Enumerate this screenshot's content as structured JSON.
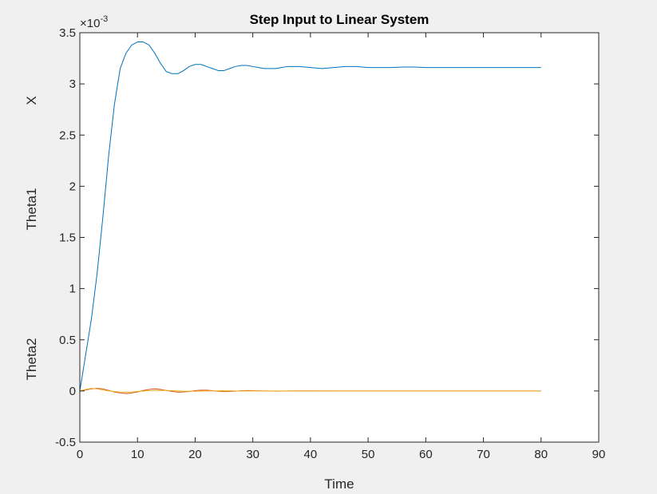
{
  "chart_data": {
    "type": "line",
    "title": "Step Input to Linear System",
    "xlabel": "Time",
    "ylabels": [
      "X",
      "Theta1",
      "Theta2"
    ],
    "y_exponent_label": "×10",
    "y_exponent_value": "-3",
    "xlim": [
      0,
      90
    ],
    "ylim": [
      -0.5,
      3.5
    ],
    "y_scale": 0.001,
    "grid": false,
    "legend": "none",
    "xticks": [
      0,
      10,
      20,
      30,
      40,
      50,
      60,
      70,
      80,
      90
    ],
    "yticks": [
      -0.5,
      0,
      0.5,
      1,
      1.5,
      2,
      2.5,
      3,
      3.5
    ],
    "ytick_labels": [
      "-0.5",
      "0",
      "0.5",
      "1",
      "1.5",
      "2",
      "2.5",
      "3",
      "3.5"
    ],
    "series": [
      {
        "color": "#0072BD",
        "x": [
          0,
          1,
          2,
          3,
          4,
          5,
          6,
          7,
          8,
          9,
          10,
          11,
          12,
          13,
          14,
          15,
          16,
          17,
          18,
          19,
          20,
          21,
          22,
          23,
          24,
          25,
          26,
          27,
          28,
          29,
          30,
          31,
          32,
          33,
          34,
          35,
          36,
          37,
          38,
          40,
          42,
          44,
          46,
          48,
          50,
          52,
          54,
          56,
          58,
          60,
          65,
          70,
          75,
          80
        ],
        "y": [
          0,
          0.35,
          0.7,
          1.15,
          1.7,
          2.3,
          2.8,
          3.15,
          3.3,
          3.38,
          3.41,
          3.41,
          3.38,
          3.3,
          3.2,
          3.12,
          3.1,
          3.1,
          3.13,
          3.17,
          3.19,
          3.19,
          3.17,
          3.15,
          3.13,
          3.13,
          3.15,
          3.17,
          3.18,
          3.18,
          3.17,
          3.16,
          3.15,
          3.15,
          3.15,
          3.16,
          3.17,
          3.17,
          3.17,
          3.16,
          3.15,
          3.16,
          3.17,
          3.17,
          3.16,
          3.16,
          3.16,
          3.165,
          3.165,
          3.16,
          3.16,
          3.16,
          3.16,
          3.16
        ]
      },
      {
        "color": "#D95319",
        "x": [
          0,
          1,
          2,
          3,
          4,
          5,
          6,
          7,
          8,
          9,
          10,
          11,
          12,
          13,
          14,
          15,
          16,
          17,
          18,
          19,
          20,
          21,
          22,
          23,
          24,
          25,
          26,
          27,
          28,
          29,
          30,
          32,
          34,
          36,
          38,
          40,
          45,
          50,
          60,
          70,
          80
        ],
        "y": [
          0,
          0.01,
          0.02,
          0.025,
          0.02,
          0.005,
          -0.01,
          -0.02,
          -0.025,
          -0.02,
          -0.01,
          0.005,
          0.015,
          0.02,
          0.015,
          0.005,
          -0.005,
          -0.012,
          -0.01,
          -0.005,
          0.003,
          0.008,
          0.008,
          0.003,
          -0.003,
          -0.006,
          -0.005,
          -0.002,
          0.002,
          0.004,
          0.003,
          0,
          -0.002,
          0,
          0.001,
          0.001,
          0,
          0,
          0,
          0,
          0
        ]
      },
      {
        "color": "#EDB120",
        "x": [
          0,
          1,
          2,
          3,
          4,
          5,
          6,
          7,
          8,
          9,
          10,
          12,
          14,
          16,
          18,
          20,
          22,
          24,
          26,
          28,
          30,
          35,
          40,
          50,
          60,
          70,
          80
        ],
        "y": [
          0,
          0.015,
          0.025,
          0.02,
          0.01,
          0,
          -0.005,
          -0.01,
          -0.012,
          -0.01,
          -0.005,
          0.003,
          0.006,
          0.003,
          -0.002,
          -0.003,
          0,
          0.002,
          0.001,
          -0.001,
          0,
          0,
          0,
          0,
          0,
          0,
          0
        ]
      }
    ]
  }
}
